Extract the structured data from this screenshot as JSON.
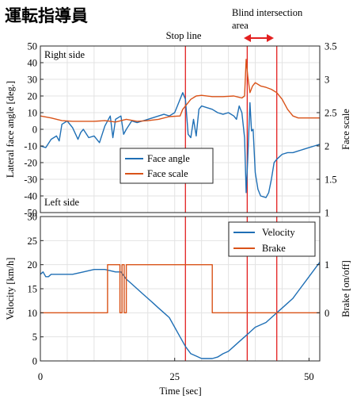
{
  "title": "運転指導員",
  "chart_data": [
    {
      "type": "line",
      "ylabel": "Lateral face angle [deg.]",
      "y2label": "Face scale",
      "xlim": [
        0,
        52
      ],
      "ylim": [
        -50,
        50
      ],
      "y2lim": [
        1,
        3.5
      ],
      "yticks": [
        "50",
        "40",
        "30",
        "20",
        "10",
        "0",
        "-10",
        "-20",
        "-30",
        "-40",
        "-50"
      ],
      "y2ticks": [
        "3.5",
        "3",
        "2.5",
        "2",
        "1.5",
        "1"
      ],
      "grid": true,
      "legend_position": "center",
      "annotations": {
        "right_side": "Right side",
        "left_side": "Left side",
        "stop_line": "Stop line",
        "blind_area": "Blind intersection area"
      },
      "event_lines_x": [
        27,
        38.5,
        44
      ],
      "series": [
        {
          "name": "Face angle",
          "color": "#1f6fb5",
          "axis": "left",
          "x": [
            0,
            1,
            2,
            3,
            3.5,
            4,
            5,
            6,
            7,
            7.5,
            8,
            9,
            10,
            11,
            11.5,
            12,
            13,
            13.5,
            14,
            15,
            15.5,
            16,
            17,
            18,
            19,
            20,
            21,
            22,
            23,
            24,
            25,
            25.5,
            26,
            26.5,
            27,
            27.5,
            28,
            28.5,
            29,
            29.5,
            30,
            31,
            32,
            33,
            34,
            35,
            36,
            36.5,
            37,
            37.5,
            38,
            38.3,
            38.6,
            39,
            39.3,
            39.6,
            40,
            40.5,
            41,
            42,
            42.5,
            43,
            43.5,
            44,
            45,
            46,
            47,
            48,
            49,
            50,
            51,
            52
          ],
          "y": [
            -10,
            -11,
            -6,
            -4,
            -7,
            3,
            5,
            1,
            -6,
            -2,
            0,
            -5,
            -4,
            -8,
            -3,
            2,
            8,
            -5,
            6,
            8,
            -3,
            0,
            5,
            4,
            5,
            6,
            7,
            8,
            9,
            8,
            10,
            14,
            18,
            22,
            18,
            -3,
            -5,
            6,
            -4,
            12,
            14,
            13,
            12,
            10,
            9,
            10,
            8,
            6,
            14,
            10,
            -5,
            -38,
            -18,
            16,
            -1,
            0,
            -26,
            -36,
            -40,
            -41,
            -38,
            -30,
            -20,
            -18,
            -15,
            -14,
            -14,
            -13,
            -12,
            -11,
            -10,
            -9
          ]
        },
        {
          "name": "Face scale",
          "color": "#d95319",
          "axis": "right",
          "x": [
            0,
            2,
            4,
            6,
            8,
            10,
            12,
            14,
            16,
            18,
            20,
            22,
            24,
            26,
            26.5,
            27,
            27.5,
            28,
            29,
            30,
            32,
            34,
            36,
            37,
            37.5,
            38,
            38.3,
            38.6,
            39,
            39.5,
            40,
            41,
            42,
            43,
            44,
            45,
            46,
            47,
            48,
            50,
            52
          ],
          "y": [
            2.45,
            2.42,
            2.38,
            2.37,
            2.37,
            2.37,
            2.38,
            2.36,
            2.4,
            2.37,
            2.38,
            2.4,
            2.44,
            2.45,
            2.55,
            2.6,
            2.65,
            2.7,
            2.75,
            2.76,
            2.74,
            2.74,
            2.75,
            2.73,
            2.72,
            2.75,
            3.3,
            3.05,
            2.8,
            2.9,
            2.95,
            2.9,
            2.88,
            2.85,
            2.8,
            2.7,
            2.55,
            2.45,
            2.42,
            2.42,
            2.42
          ]
        }
      ]
    },
    {
      "type": "line",
      "xlabel": "Time [sec]",
      "ylabel": "Velocity [km/h]",
      "y2label": "Brake [on/off]",
      "xlim": [
        0,
        52
      ],
      "ylim": [
        0,
        30
      ],
      "xticks": [
        "0",
        "25",
        "50"
      ],
      "yticks": [
        "30",
        "25",
        "20",
        "15",
        "10",
        "5",
        "0"
      ],
      "y2ticks": [
        "1",
        "0"
      ],
      "grid": true,
      "legend_position": "top-right",
      "event_lines_x": [
        27,
        38.5,
        44
      ],
      "series": [
        {
          "name": "Velocity",
          "color": "#1f6fb5",
          "axis": "left",
          "x": [
            0,
            0.5,
            1,
            1.5,
            2,
            6,
            8,
            10,
            12,
            14,
            15,
            16,
            17,
            18,
            19,
            20,
            21,
            22,
            23,
            24,
            25,
            26,
            27,
            28,
            29,
            30,
            31,
            32,
            33,
            34,
            35,
            36,
            37,
            38,
            39,
            40,
            41,
            42,
            43,
            44,
            45,
            46,
            47,
            48,
            49,
            50,
            51,
            52
          ],
          "y": [
            18,
            18.5,
            17.5,
            17.5,
            18,
            18,
            18.5,
            19,
            19,
            18.5,
            18.5,
            17,
            16,
            15,
            14,
            13,
            12,
            11,
            10,
            9,
            7,
            5,
            3,
            1.5,
            1,
            0.5,
            0.5,
            0.5,
            0.8,
            1.5,
            2,
            3,
            4,
            5,
            6,
            7,
            7.5,
            8,
            9,
            10,
            11,
            12,
            13,
            14.5,
            16,
            17.5,
            19,
            20.5
          ]
        },
        {
          "name": "Brake",
          "color": "#d95319",
          "axis": "right",
          "x": [
            0,
            12.5,
            12.5,
            14.8,
            14.8,
            15.2,
            15.2,
            15.6,
            15.6,
            16,
            16,
            32,
            32,
            52
          ],
          "y": [
            0,
            0,
            1,
            1,
            0,
            0,
            1,
            1,
            0,
            0,
            1,
            1,
            0,
            0
          ]
        }
      ]
    }
  ]
}
